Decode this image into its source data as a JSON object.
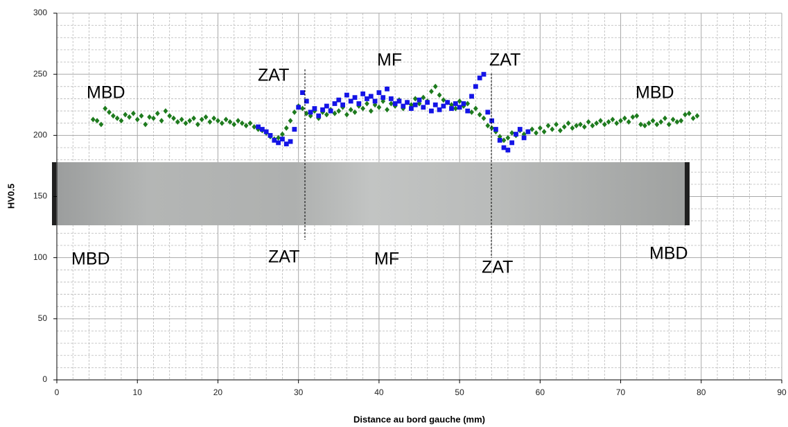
{
  "chart_data": {
    "type": "scatter",
    "x_label": "Distance au bord gauche (mm)",
    "y_label": "HV0.5",
    "xlim": [
      0,
      90
    ],
    "ylim": [
      0,
      300
    ],
    "xticks": [
      0,
      10,
      20,
      30,
      40,
      50,
      60,
      70,
      80,
      90
    ],
    "yticks": [
      0,
      50,
      100,
      150,
      200,
      250,
      300
    ],
    "x_minor_ticks": [
      2,
      4,
      6,
      8,
      12,
      14,
      16,
      18,
      22,
      24,
      26,
      28,
      32,
      34,
      36,
      38,
      42,
      44,
      46,
      48,
      52,
      54,
      56,
      58,
      62,
      64,
      66,
      68,
      72,
      74,
      76,
      78,
      82,
      84,
      86,
      88
    ],
    "y_minor_ticks": [
      10,
      20,
      30,
      40,
      60,
      70,
      80,
      90,
      110,
      120,
      130,
      140,
      160,
      170,
      180,
      190,
      210,
      220,
      230,
      240,
      260,
      270,
      280,
      290
    ],
    "grid": true,
    "annotations": [
      "MBD",
      "ZAT",
      "MF",
      "ZAT",
      "MBD",
      "MBD",
      "ZAT",
      "MF",
      "ZAT",
      "MBD"
    ],
    "series": [
      {
        "color": "#1e7b1e",
        "marker": "diamond",
        "x": [
          4.5,
          5,
          5.5,
          6,
          6.5,
          7,
          7.5,
          8,
          8.5,
          9,
          9.5,
          10,
          10.5,
          11,
          11.5,
          12,
          12.5,
          13,
          13.5,
          14,
          14.5,
          15,
          15.5,
          16,
          16.5,
          17,
          17.5,
          18,
          18.5,
          19,
          19.5,
          20,
          20.5,
          21,
          21.5,
          22,
          22.5,
          23,
          23.5,
          24,
          24.5,
          25,
          25.5,
          26,
          26.5,
          27,
          27.5,
          28,
          28.5,
          29,
          29.5,
          30,
          30.5,
          31,
          31.5,
          32,
          32.5,
          33,
          33.5,
          34,
          34.5,
          35,
          35.5,
          36,
          36.5,
          37,
          37.5,
          38,
          38.5,
          39,
          39.5,
          40,
          40.5,
          41,
          41.5,
          42,
          42.5,
          43,
          43.5,
          44,
          44.5,
          45,
          45.5,
          46,
          46.5,
          47,
          47.5,
          48,
          48.5,
          49,
          49.5,
          50,
          50.5,
          51,
          51.5,
          52,
          52.5,
          53,
          53.5,
          54,
          54.5,
          55,
          55.5,
          56,
          56.5,
          57,
          57.5,
          58,
          58.5,
          59,
          59.5,
          60,
          60.5,
          61,
          61.5,
          62,
          62.5,
          63,
          63.5,
          64,
          64.5,
          65,
          65.5,
          66,
          66.5,
          67,
          67.5,
          68,
          68.5,
          69,
          69.5,
          70,
          70.5,
          71,
          71.5,
          72,
          72.5,
          73,
          73.5,
          74,
          74.5,
          75,
          75.5,
          76,
          76.5,
          77,
          77.5,
          78,
          78.5,
          79,
          79.5
        ],
        "values": [
          213,
          212,
          209,
          222,
          219,
          216,
          214,
          212,
          217,
          215,
          218,
          213,
          216,
          209,
          215,
          214,
          218,
          212,
          220,
          216,
          214,
          211,
          213,
          210,
          212,
          214,
          209,
          213,
          215,
          211,
          214,
          212,
          210,
          213,
          211,
          209,
          212,
          210,
          208,
          210,
          207,
          205,
          204,
          202,
          199,
          197,
          198,
          201,
          206,
          212,
          219,
          224,
          222,
          218,
          216,
          220,
          214,
          219,
          217,
          221,
          218,
          220,
          223,
          217,
          221,
          219,
          224,
          222,
          226,
          220,
          225,
          223,
          228,
          221,
          226,
          224,
          229,
          222,
          227,
          225,
          230,
          226,
          231,
          228,
          236,
          240,
          233,
          229,
          227,
          225,
          222,
          228,
          224,
          226,
          219,
          222,
          217,
          214,
          208,
          206,
          203,
          199,
          196,
          198,
          202,
          200,
          204,
          201,
          203,
          205,
          202,
          206,
          203,
          208,
          205,
          209,
          204,
          207,
          210,
          206,
          208,
          209,
          207,
          211,
          208,
          210,
          212,
          209,
          211,
          213,
          210,
          212,
          214,
          211,
          215,
          216,
          209,
          208,
          210,
          212,
          209,
          211,
          214,
          209,
          213,
          211,
          212,
          217,
          218,
          214,
          216
        ]
      },
      {
        "color": "#1414e6",
        "marker": "square",
        "x": [
          25,
          25.5,
          26,
          26.5,
          27,
          27.5,
          28,
          28.5,
          29,
          29.5,
          30,
          30.5,
          31,
          31.5,
          32,
          32.5,
          33,
          33.5,
          34,
          34.5,
          35,
          35.5,
          36,
          36.5,
          37,
          37.5,
          38,
          38.5,
          39,
          39.5,
          40,
          40.5,
          41,
          41.5,
          42,
          42.5,
          43,
          43.5,
          44,
          44.5,
          45,
          45.5,
          46,
          46.5,
          47,
          47.5,
          48,
          48.5,
          49,
          49.5,
          50,
          50.5,
          51,
          51.5,
          52,
          52.5,
          53,
          53.5,
          54,
          54.5,
          55,
          55.5,
          56,
          56.5,
          57,
          57.5,
          58,
          58.5
        ],
        "values": [
          207,
          205,
          203,
          200,
          196,
          194,
          197,
          193,
          195,
          205,
          223,
          235,
          228,
          219,
          222,
          216,
          221,
          224,
          220,
          226,
          229,
          225,
          233,
          228,
          231,
          226,
          234,
          230,
          232,
          228,
          235,
          231,
          238,
          230,
          226,
          228,
          224,
          227,
          222,
          225,
          229,
          223,
          227,
          220,
          225,
          221,
          224,
          227,
          222,
          226,
          223,
          226,
          220,
          232,
          240,
          247,
          250,
          219,
          212,
          205,
          196,
          190,
          188,
          194,
          201,
          205,
          198,
          203
        ]
      }
    ]
  }
}
